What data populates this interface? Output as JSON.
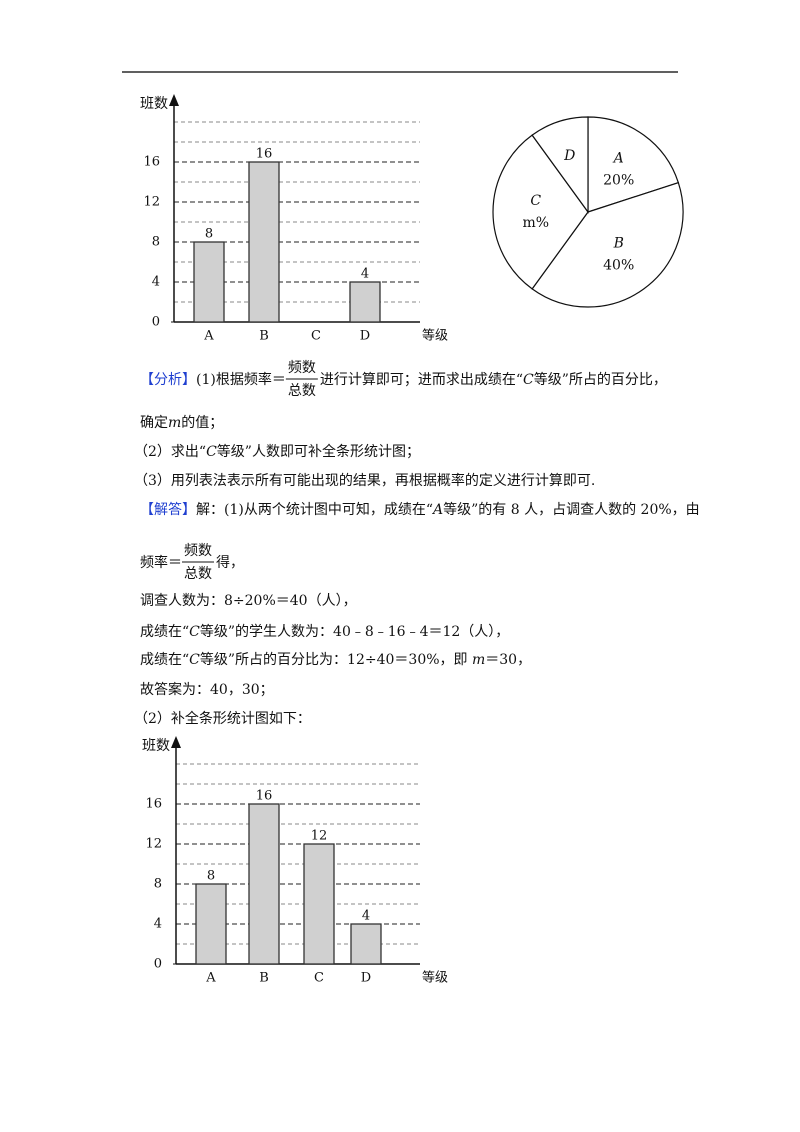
{
  "chart_data": [
    {
      "type": "bar",
      "ylabel": "班数",
      "xlabel": "等级",
      "categories": [
        "A",
        "B",
        "C",
        "D"
      ],
      "values": [
        8,
        16,
        null,
        4
      ],
      "color": "#d0d0d0",
      "ylim": [
        0,
        22
      ],
      "yticks": [
        0,
        4,
        8,
        12,
        16
      ],
      "minor_grid": [
        2,
        6,
        10,
        14,
        18,
        20
      ],
      "grid": true
    },
    {
      "type": "pie",
      "categories": [
        "A",
        "B",
        "C",
        "D"
      ],
      "values": [
        20,
        40,
        30,
        10
      ],
      "value_labels": [
        "20%",
        "40%",
        "m%",
        null
      ],
      "color": "#ffffff"
    },
    {
      "type": "bar",
      "ylabel": "班数",
      "xlabel": "等级",
      "categories": [
        "A",
        "B",
        "C",
        "D"
      ],
      "values": [
        8,
        16,
        12,
        4
      ],
      "color": "#d0d0d0",
      "ylim": [
        0,
        22
      ],
      "yticks": [
        0,
        4,
        8,
        12,
        16
      ],
      "minor_grid": [
        2,
        6,
        10,
        14,
        18,
        20
      ],
      "grid": true
    }
  ],
  "analysis": {
    "tag": "【分析】",
    "l1": [
      "(1)根据频率＝",
      "进行计算即可；进而求出成绩在“",
      "C",
      "等级”所占的百分比，"
    ],
    "frac": [
      "频数",
      "总数"
    ],
    "l2": [
      "确定",
      "m",
      "的值；"
    ],
    "l3": [
      "（2）求出“",
      "C",
      "等级”人数即可补全条形统计图；"
    ],
    "l4": "（3）用列表法表示所有可能出现的结果，再根据概率的定义进行计算即可."
  },
  "answer": {
    "tag": "【解答】",
    "l1": [
      "解：(1)从两个统计图中可知，成绩在“",
      "A",
      "等级”的有 8 人，占调查人数的 20%，由"
    ],
    "l2": [
      "频率＝",
      "得，"
    ],
    "frac": [
      "频数",
      "总数"
    ],
    "l3": "调查人数为：8÷20%＝40（人），",
    "l4": [
      "成绩在“",
      "C",
      "等级”的学生人数为：40﹣8﹣16﹣4＝12（人），"
    ],
    "l5": [
      "成绩在“",
      "C",
      "等级”所占的百分比为：12÷40＝30%，即 ",
      "m",
      "＝30，"
    ],
    "l6": "故答案为：40，30；",
    "l7": "（2）补全条形统计图如下："
  }
}
